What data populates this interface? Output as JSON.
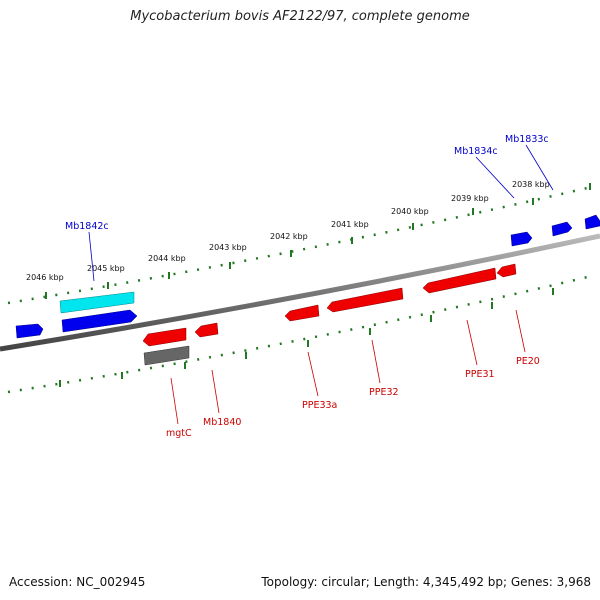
{
  "header": {
    "title": "Mycobacterium bovis AF2122/97, complete genome"
  },
  "footer": {
    "accession": "Accession: NC_002945",
    "topology": "Topology: circular; Length: 4,345,492 bp; Genes: 3,968"
  },
  "ticks": [
    "2046 kbp",
    "2045 kbp",
    "2044 kbp",
    "2043 kbp",
    "2042 kbp",
    "2041 kbp",
    "2040 kbp",
    "2039 kbp",
    "2038 kbp"
  ],
  "genes": {
    "forward": [
      "Mb1842c",
      "Mb1834c",
      "Mb1833c"
    ],
    "reverse": [
      "mgtC",
      "Mb1840",
      "PPE33a",
      "PPE32",
      "PPE31",
      "PE20"
    ]
  },
  "colors": {
    "forward_gene": "#0000ee",
    "reverse_gene": "#ee0000",
    "highlight_gene": "#00e5ee",
    "grey_gene": "#666666",
    "tick_marks": "#227722",
    "backbone": "#777777"
  }
}
